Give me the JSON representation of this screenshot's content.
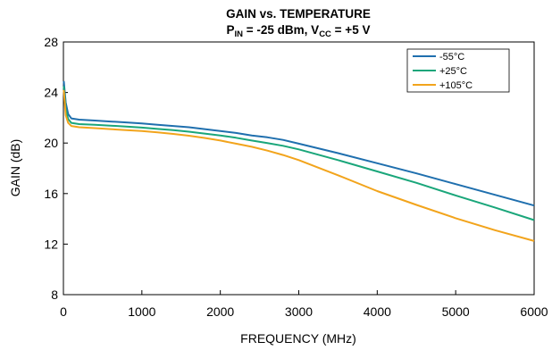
{
  "chart_data": {
    "type": "line",
    "title": "GAIN vs. TEMPERATURE",
    "subtitle": {
      "p": "P",
      "p_sub": "IN",
      "p_value": " = -25 dBm, V",
      "v_sub": "CC",
      "v_value": " = +5 V"
    },
    "xlabel": "FREQUENCY (MHz)",
    "ylabel": "GAIN (dB)",
    "xlim": [
      0,
      6000
    ],
    "ylim": [
      8,
      28
    ],
    "xticks": [
      0,
      1000,
      2000,
      3000,
      4000,
      5000,
      6000
    ],
    "yticks": [
      8,
      12,
      16,
      20,
      24,
      28
    ],
    "grid": false,
    "legend_position": "top-right",
    "series": [
      {
        "name": "-55°C",
        "color": "#1f6fae",
        "x": [
          5,
          30,
          60,
          100,
          200,
          400,
          600,
          800,
          1000,
          1200,
          1400,
          1600,
          1800,
          2000,
          2200,
          2400,
          2600,
          2800,
          3000,
          3500,
          4000,
          4500,
          5000,
          5500,
          6000
        ],
        "y": [
          24.9,
          23.2,
          22.3,
          21.95,
          21.85,
          21.78,
          21.7,
          21.63,
          21.55,
          21.45,
          21.35,
          21.25,
          21.1,
          20.95,
          20.8,
          20.6,
          20.45,
          20.25,
          19.95,
          19.2,
          18.4,
          17.6,
          16.75,
          15.9,
          15.05
        ]
      },
      {
        "name": "+25°C",
        "color": "#1aa67a",
        "x": [
          5,
          30,
          60,
          100,
          200,
          400,
          600,
          800,
          1000,
          1200,
          1400,
          1600,
          1800,
          2000,
          2200,
          2400,
          2600,
          2800,
          3000,
          3500,
          4000,
          4500,
          5000,
          5500,
          6000
        ],
        "y": [
          24.5,
          22.7,
          21.9,
          21.6,
          21.5,
          21.45,
          21.38,
          21.3,
          21.22,
          21.12,
          21.02,
          20.9,
          20.75,
          20.6,
          20.42,
          20.2,
          20.0,
          19.78,
          19.5,
          18.65,
          17.75,
          16.85,
          15.85,
          14.9,
          13.9
        ]
      },
      {
        "name": "+105°C",
        "color": "#f2a41c",
        "x": [
          5,
          30,
          60,
          100,
          200,
          400,
          600,
          800,
          1000,
          1200,
          1400,
          1600,
          1800,
          2000,
          2200,
          2400,
          2600,
          2800,
          3000,
          3500,
          4000,
          4500,
          5000,
          5500,
          6000
        ],
        "y": [
          24.2,
          22.2,
          21.6,
          21.35,
          21.25,
          21.18,
          21.1,
          21.02,
          20.95,
          20.85,
          20.72,
          20.58,
          20.4,
          20.2,
          19.95,
          19.7,
          19.4,
          19.05,
          18.65,
          17.45,
          16.2,
          15.1,
          14.05,
          13.1,
          12.25
        ]
      }
    ]
  }
}
